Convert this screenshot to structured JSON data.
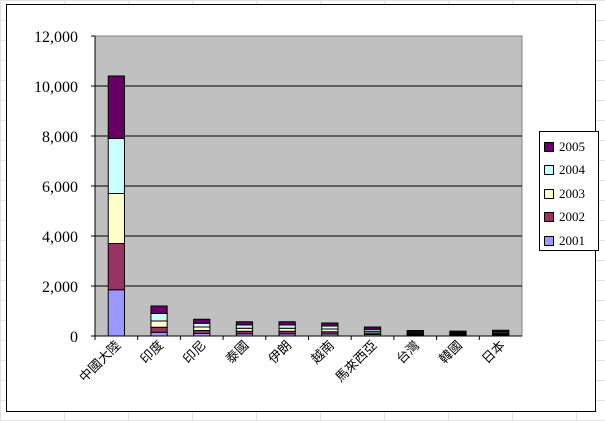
{
  "chart_data": {
    "type": "bar",
    "stacked": true,
    "categories": [
      "中國大陸",
      "印度",
      "印尼",
      "泰國",
      "伊朗",
      "越南",
      "馬來西亞",
      "台灣",
      "韓國",
      "日本"
    ],
    "series": [
      {
        "name": "2001",
        "color": "#9999ff",
        "values": [
          1850,
          150,
          100,
          90,
          90,
          80,
          60,
          40,
          35,
          40
        ]
      },
      {
        "name": "2002",
        "color": "#993366",
        "values": [
          1850,
          200,
          120,
          100,
          100,
          90,
          60,
          40,
          35,
          40
        ]
      },
      {
        "name": "2003",
        "color": "#ffffcc",
        "values": [
          2000,
          250,
          140,
          120,
          120,
          110,
          70,
          45,
          40,
          45
        ]
      },
      {
        "name": "2004",
        "color": "#ccffff",
        "values": [
          2200,
          300,
          150,
          130,
          130,
          120,
          80,
          45,
          40,
          50
        ]
      },
      {
        "name": "2005",
        "color": "#660066",
        "values": [
          2500,
          300,
          160,
          130,
          130,
          120,
          90,
          50,
          45,
          55
        ]
      }
    ],
    "yticks": [
      "0",
      "2,000",
      "4,000",
      "6,000",
      "8,000",
      "10,000",
      "12,000"
    ],
    "ylim": [
      0,
      12000
    ],
    "grid": true,
    "legend_position": "right",
    "plot_background": "#c0c0c0"
  }
}
